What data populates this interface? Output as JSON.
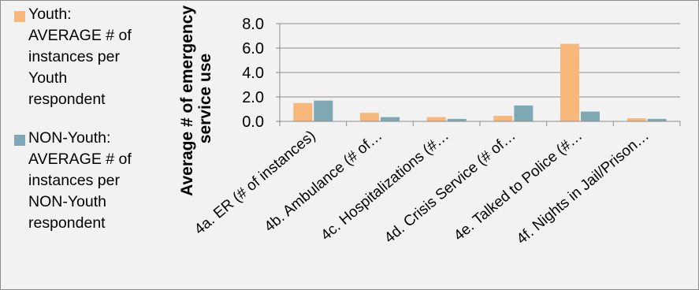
{
  "chart_data": {
    "type": "bar",
    "categories": [
      "4a. ER (# of instances)",
      "4b. Ambulance (# of…",
      "4c. Hospitalizations (#…",
      "4d. Crisis Service (# of…",
      "4e. Talked to Police (#…",
      "4f. Nights in Jail/Prison…"
    ],
    "series": [
      {
        "name": "Youth: AVERAGE # of instances per Youth respondent",
        "color": "#f8b77b",
        "values": [
          1.5,
          0.7,
          0.35,
          0.45,
          6.35,
          0.25
        ]
      },
      {
        "name": "NON-Youth: AVERAGE # of instances per NON-Youth respondent",
        "color": "#7fa8b5",
        "values": [
          1.7,
          0.35,
          0.2,
          1.3,
          0.8,
          0.2
        ]
      }
    ],
    "ylabel_lines": [
      "Average # of emergency",
      "service use"
    ],
    "ylim": [
      0,
      8
    ],
    "yticks": [
      "0.0",
      "2.0",
      "4.0",
      "6.0",
      "8.0"
    ],
    "grid": true,
    "legend_position": "left"
  },
  "legend": {
    "items": [
      {
        "label": "Youth:\nAVERAGE # of\ninstances per\nYouth\nrespondent",
        "color": "#f8b77b"
      },
      {
        "label": "NON-Youth:\nAVERAGE # of\ninstances per\nNON-Youth\nrespondent",
        "color": "#7fa8b5"
      }
    ]
  }
}
